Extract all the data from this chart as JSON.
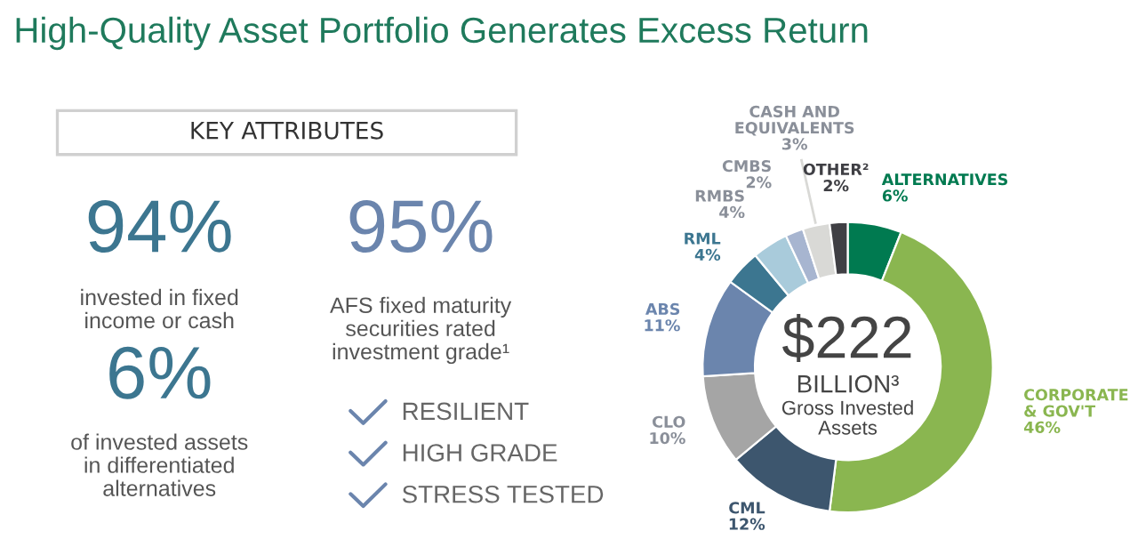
{
  "chart_data": [
    {
      "type": "other",
      "title": "High-Quality Asset Portfolio Generates Excess Return",
      "subtitle": "KEY ATTRIBUTES",
      "annotations": [
        "94%",
        "invested in fixed income or cash",
        "95%",
        "AFS fixed maturity securities rated investment grade¹",
        "6%",
        "of invested assets in differentiated alternatives",
        "RESILIENT",
        "HIGH GRADE",
        "STRESS TESTED"
      ]
    },
    {
      "type": "donut",
      "categories": [
        "ALTERNATIVES",
        "CORPORATE & GOV'T",
        "CML",
        "CLO",
        "ABS",
        "RML",
        "RMBS",
        "CMBS",
        "CASH AND EQUIVALENTS",
        "OTHER²"
      ],
      "values": [
        6,
        46,
        12,
        10,
        11,
        4,
        4,
        2,
        3,
        2
      ],
      "value_labels": [
        "6%",
        "46%",
        "12%",
        "10%",
        "11%",
        "4%",
        "4%",
        "2%",
        "3%",
        "2%"
      ],
      "colors": [
        "#007a50",
        "#8ab650",
        "#3d566e",
        "#a5a5a5",
        "#6b85ad",
        "#3c7690",
        "#a9cbdb",
        "#a7b5d0",
        "#d9d9d6",
        "#3f3f44"
      ],
      "annotations": [
        "$222",
        "BILLION³",
        "Gross Invested Assets"
      ]
    }
  ]
}
